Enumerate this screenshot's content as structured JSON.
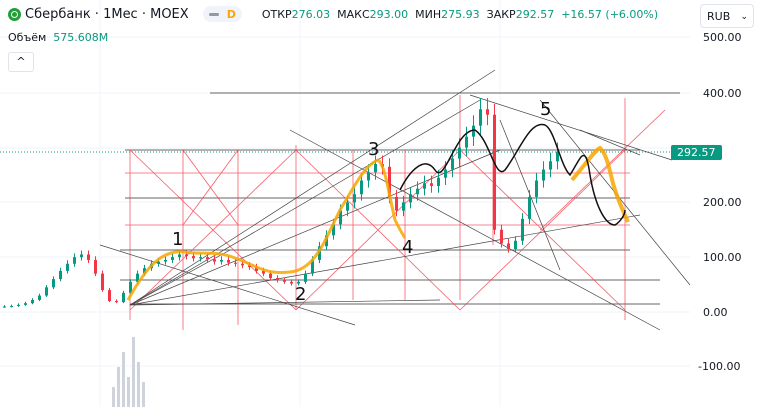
{
  "header": {
    "symbol": "Сбербанк · 1Мес · MOEX",
    "badge": "D",
    "open_label": "ОТКР",
    "open": "276.03",
    "high_label": "МАКС",
    "high": "293.00",
    "low_label": "МИН",
    "low": "275.93",
    "close_label": "ЗАКР",
    "close": "292.57",
    "change": "+16.57 (+6.00%)",
    "volume_label": "Объём",
    "volume": "575.608M",
    "collapse": "^"
  },
  "currency": {
    "value": "RUB",
    "chevron": "⌄"
  },
  "price_axis": {
    "labels": [
      "500.00",
      "400.00",
      "200.00",
      "100.00",
      "0.00",
      "-100.00"
    ],
    "last_price": "292.57"
  },
  "annotations": [
    "1",
    "2",
    "3",
    "4",
    "5"
  ],
  "colors": {
    "up": "#089981",
    "down": "#f23645",
    "drawing_red": "#f23645",
    "drawing_orange": "#f7a600"
  },
  "chart_data": {
    "type": "candlestick",
    "title": "Сбербанк · 1Мес · MOEX",
    "ylim": [
      -150,
      520
    ],
    "closes": [
      10,
      11,
      13,
      16,
      22,
      30,
      45,
      60,
      75,
      88,
      100,
      105,
      95,
      70,
      40,
      20,
      18,
      35,
      55,
      70,
      80,
      88,
      92,
      95,
      100,
      105,
      102,
      98,
      100,
      96,
      92,
      95,
      90,
      88,
      85,
      82,
      75,
      70,
      62,
      58,
      55,
      52,
      55,
      70,
      95,
      120,
      140,
      160,
      185,
      200,
      215,
      240,
      255,
      270,
      265,
      210,
      185,
      200,
      215,
      225,
      235,
      230,
      245,
      260,
      280,
      300,
      320,
      340,
      370,
      360,
      150,
      125,
      115,
      130,
      170,
      210,
      240,
      260,
      275,
      292.57
    ],
    "volumes": [
      20,
      40,
      55,
      30,
      70,
      45,
      25
    ]
  }
}
